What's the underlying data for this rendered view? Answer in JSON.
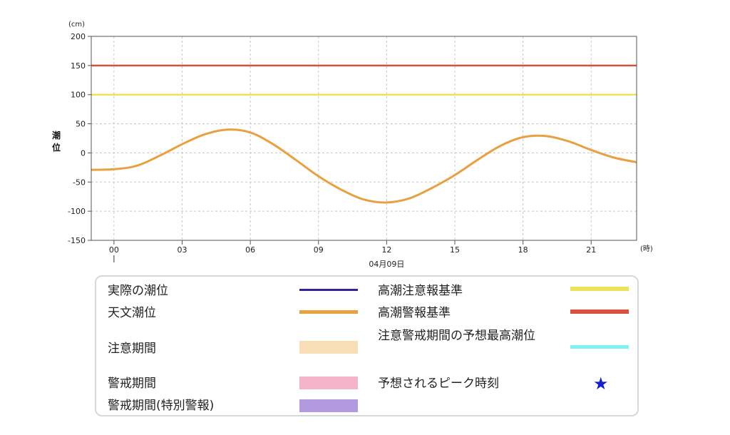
{
  "chart_data": {
    "type": "line",
    "title": "",
    "ylabel": "潮位",
    "y_unit": "(cm)",
    "x_unit": "(時)",
    "date_label": "04月09日",
    "ylim": [
      -150,
      200
    ],
    "y_ticks": [
      200,
      150,
      100,
      50,
      0,
      -50,
      -100,
      -150
    ],
    "xlim": [
      -1,
      23
    ],
    "x_ticks": [
      {
        "hour": 0,
        "label": "00"
      },
      {
        "hour": 3,
        "label": "03"
      },
      {
        "hour": 6,
        "label": "06"
      },
      {
        "hour": 9,
        "label": "09"
      },
      {
        "hour": 12,
        "label": "12"
      },
      {
        "hour": 15,
        "label": "15"
      },
      {
        "hour": 18,
        "label": "18"
      },
      {
        "hour": 21,
        "label": "21"
      }
    ],
    "grid": true,
    "series": [
      {
        "name": "天文潮位",
        "color": "#e8a040",
        "x": [
          -1,
          0,
          1,
          2,
          3,
          4,
          5,
          6,
          7,
          8,
          9,
          10,
          11,
          12,
          13,
          14,
          15,
          16,
          17,
          18,
          19,
          20,
          21,
          22,
          23
        ],
        "y": [
          -29,
          -28,
          -22,
          -5,
          15,
          32,
          40,
          35,
          15,
          -12,
          -40,
          -63,
          -80,
          -85,
          -78,
          -60,
          -38,
          -12,
          12,
          27,
          29,
          20,
          5,
          -8,
          -16
        ]
      }
    ],
    "reference_lines": [
      {
        "name": "高潮警報基準",
        "value": 150,
        "color": "#d9513a"
      },
      {
        "name": "高潮注意報基準",
        "value": 100,
        "color": "#f0e05a"
      }
    ]
  },
  "legend": {
    "items": [
      {
        "label": "実際の潮位",
        "kind": "line",
        "color": "#3a1f9e"
      },
      {
        "label": "天文潮位",
        "kind": "line",
        "color": "#e8a040"
      },
      {
        "label": "注意期間",
        "kind": "block",
        "color": "#f8ddb6"
      },
      {
        "label": "警戒期間",
        "kind": "block",
        "color": "#f4b3c8"
      },
      {
        "label": "警戒期間(特別警報)",
        "kind": "block",
        "color": "#b19ae0"
      },
      {
        "label": "高潮注意報基準",
        "kind": "line",
        "color": "#f0e05a"
      },
      {
        "label": "高潮警報基準",
        "kind": "line",
        "color": "#d9513a"
      },
      {
        "label": "注意警戒期間の予想最高潮位",
        "kind": "line",
        "color": "#7ef2f5"
      },
      {
        "label": "予想されるピーク時刻",
        "kind": "star",
        "color": "#1020d0",
        "symbol": "★"
      }
    ]
  }
}
